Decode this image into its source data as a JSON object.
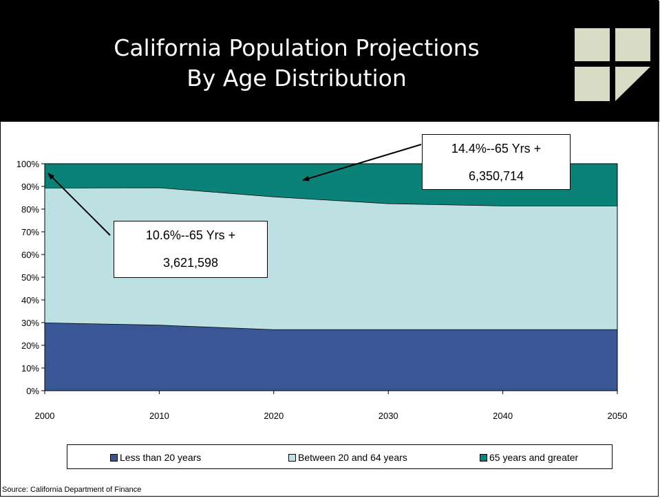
{
  "header": {
    "title_line1": "California Population Projections",
    "title_line2": "By Age Distribution"
  },
  "colors": {
    "header_bg": "#000000",
    "logo_tile": "#d8dcc4",
    "under_20": "#395795",
    "between_20_64": "#bde0e3",
    "over_65": "#0b8278"
  },
  "chart_data": {
    "type": "area",
    "stacked": true,
    "title": "",
    "xlabel": "",
    "ylabel": "",
    "x": [
      2000,
      2010,
      2020,
      2030,
      2040,
      2050
    ],
    "x_tick_labels": [
      "2000",
      "2010",
      "2020",
      "2030",
      "2040",
      "2050"
    ],
    "y_tick_labels": [
      "0%",
      "10%",
      "20%",
      "30%",
      "40%",
      "50%",
      "60%",
      "70%",
      "80%",
      "90%",
      "100%"
    ],
    "ylim": [
      0,
      100
    ],
    "series": [
      {
        "name": "Less than 20 years",
        "color": "#395795",
        "values": [
          30,
          29,
          27,
          27,
          27,
          27
        ]
      },
      {
        "name": "Between 20 and 64 years",
        "color": "#bde0e3",
        "values": [
          59.4,
          60.5,
          58.5,
          55.5,
          54.5,
          54.5
        ]
      },
      {
        "name": "65 years and greater",
        "color": "#0b8278",
        "values": [
          10.6,
          10.5,
          14.5,
          17.5,
          18.5,
          18.5
        ]
      }
    ],
    "legend_position": "bottom",
    "grid": false,
    "annotations": [
      {
        "line1": "14.4%--65 Yrs +",
        "line2": "6,350,714"
      },
      {
        "line1": "10.6%--65 Yrs +",
        "line2": "3,621,598"
      }
    ]
  },
  "source": "Source: California Department of Finance"
}
